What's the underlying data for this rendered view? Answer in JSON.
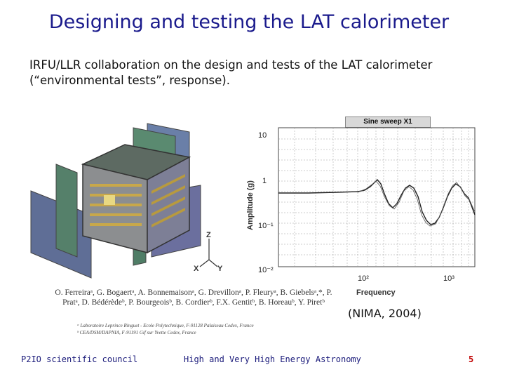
{
  "title": "Designing and testing the LAT calorimeter",
  "intro": "IRFU/LLR collaboration on the design and tests of the LAT calorimeter (“environmental tests”, response).",
  "figure": {
    "axes_labels": {
      "z": "Z",
      "x": "X",
      "y": "Y"
    },
    "plot": {
      "title": "Sine sweep X1",
      "ylabel": "Amplitude (g)",
      "xlabel": "Frequency",
      "y_ticks": [
        "10",
        "1",
        "10⁻¹",
        "10⁻²"
      ],
      "x_ticks": [
        "10²",
        "10³"
      ]
    }
  },
  "authors": "O. Ferreiraᵃ, G. Bogaertᵃ, A. Bonnemaisonᵃ, G. Drevillonᵃ, P. Fleuryᵃ, B. Giebelsᵃ,*, P. Pratᵃ, D. Bédérèdeᵇ, P. Bourgeoisᵇ, B. Cordierᵇ, F.X. Gentitᵇ, B. Horeauᵇ, Y. Piretᵇ",
  "affiliations": [
    "ᵃ Laboratoire Leprince Ringuet - Ecole Polytechnique, F-91128 Palaiseau Cedex, France",
    "ᵇ CEA/DSM/DAPNIA, F-91191 Gif sur Yvette Cedex, France"
  ],
  "citation": "(NIMA, 2004)",
  "footer": {
    "left": "P2IO scientific council",
    "center": "High and Very High Energy Astronomy",
    "page": "5"
  },
  "colors": {
    "title": "#1a1a8c",
    "footer": "#1a1a7a",
    "page_number": "#c00000"
  }
}
